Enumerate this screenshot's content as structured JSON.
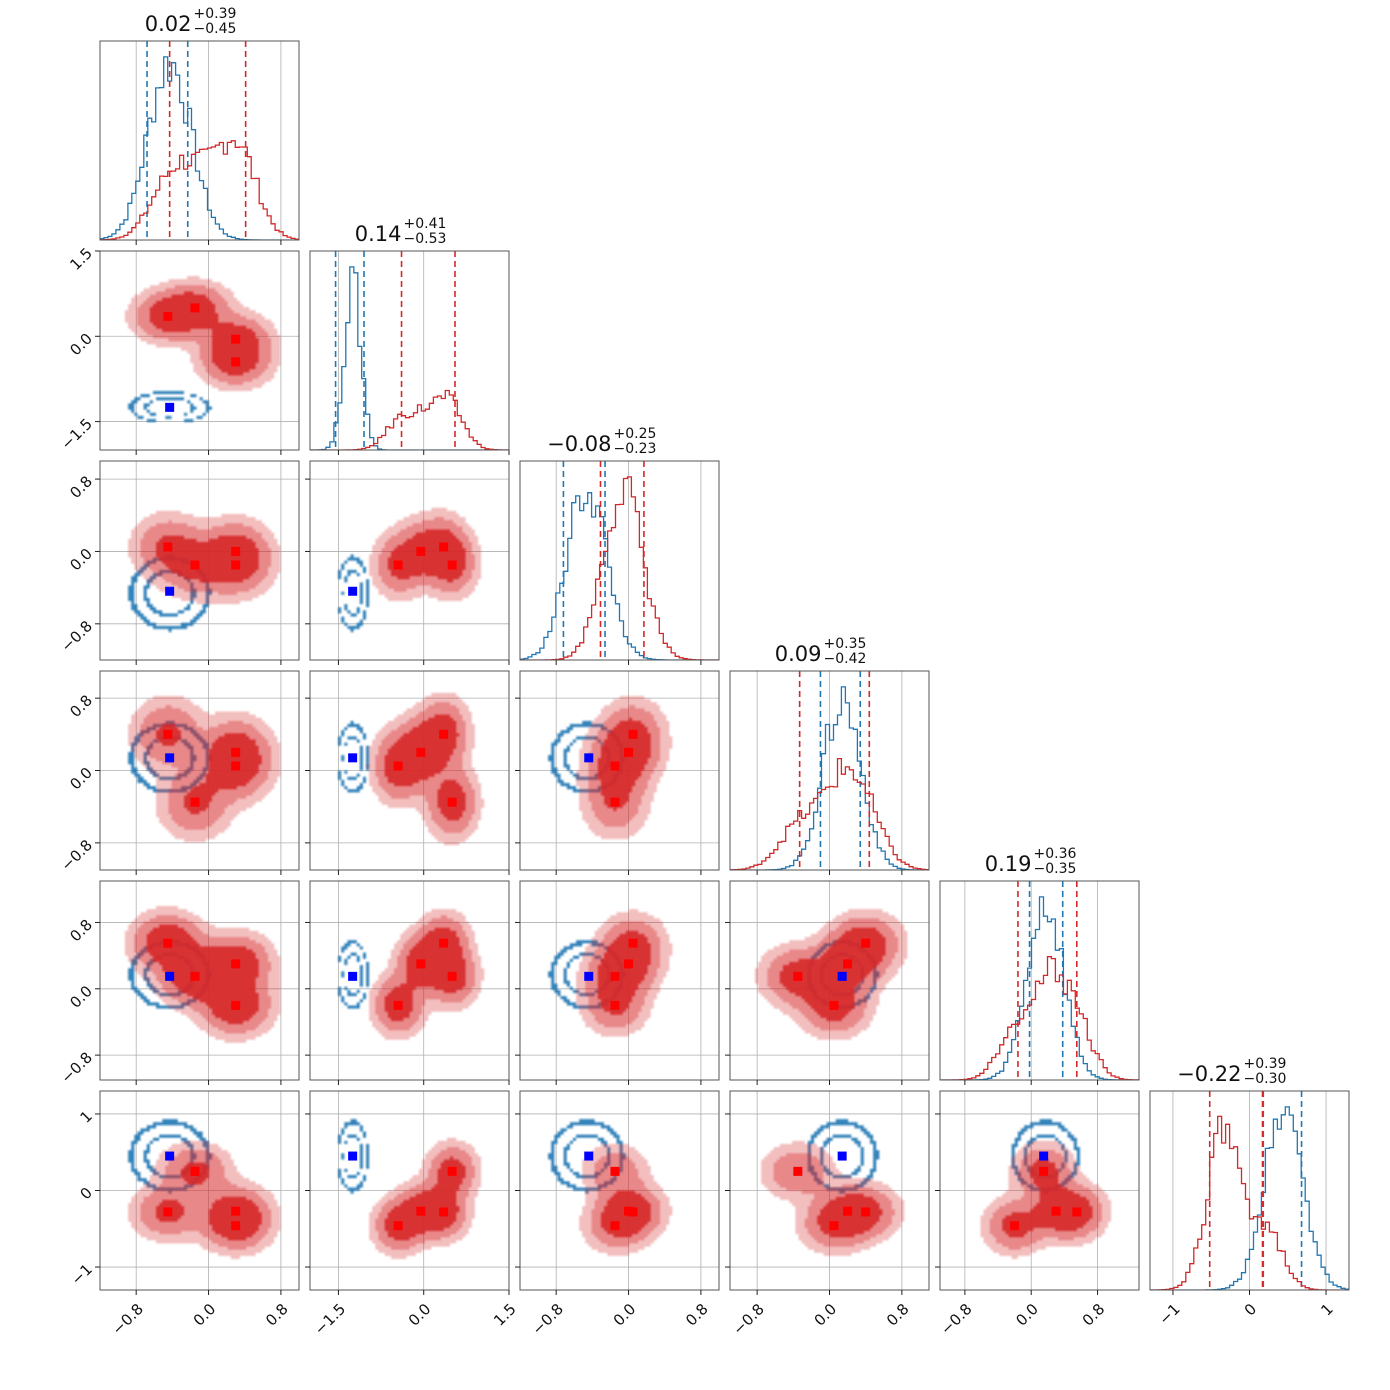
{
  "colors": {
    "series_a": "#1f77b4",
    "series_b": "#d62728",
    "series_b_fill": "#d62728",
    "marker_a": "#0000ff",
    "marker_b": "#ff0000",
    "grid": "#b0b0b0",
    "frame": "#555555"
  },
  "chart_data": {
    "type": "corner",
    "n_params": 6,
    "grid": true,
    "titles": [
      {
        "median": "0.02",
        "plus": "+0.39",
        "minus": "−0.45"
      },
      {
        "median": "0.14",
        "plus": "+0.41",
        "minus": "−0.53"
      },
      {
        "median": "−0.08",
        "plus": "+0.25",
        "minus": "−0.23"
      },
      {
        "median": "0.09",
        "plus": "+0.35",
        "minus": "−0.42"
      },
      {
        "median": "0.19",
        "plus": "+0.36",
        "minus": "−0.35"
      },
      {
        "median": "−0.22",
        "plus": "+0.39",
        "minus": "−0.30"
      }
    ],
    "ranges": [
      [
        -1.2,
        1.0
      ],
      [
        -2.0,
        1.5
      ],
      [
        -1.2,
        1.0
      ],
      [
        -1.1,
        1.1
      ],
      [
        -1.1,
        1.3
      ],
      [
        -1.3,
        1.3
      ]
    ],
    "x_ticks": [
      {
        "values": [
          -0.8,
          0.0,
          0.8
        ],
        "labels": [
          "−0.8",
          "0.0",
          "0.8"
        ]
      },
      {
        "values": [
          -1.5,
          0.0,
          1.5
        ],
        "labels": [
          "−1.5",
          "0.0",
          "1.5"
        ]
      },
      {
        "values": [
          -0.8,
          0.0,
          0.8
        ],
        "labels": [
          "−0.8",
          "0.0",
          "0.8"
        ]
      },
      {
        "values": [
          -0.8,
          0.0,
          0.8
        ],
        "labels": [
          "−0.8",
          "0.0",
          "0.8"
        ]
      },
      {
        "values": [
          -0.8,
          0.0,
          0.8
        ],
        "labels": [
          "−0.8",
          "0.0",
          "0.8"
        ]
      },
      {
        "values": [
          -1,
          0,
          1
        ],
        "labels": [
          "−1",
          "0",
          "1"
        ]
      }
    ],
    "y_ticks": [
      null,
      {
        "values": [
          -1.5,
          0.0,
          1.5
        ],
        "labels": [
          "−1.5",
          "0.0",
          "1.5"
        ]
      },
      {
        "values": [
          -0.8,
          0.0,
          0.8
        ],
        "labels": [
          "−0.8",
          "0.0",
          "0.8"
        ]
      },
      {
        "values": [
          -0.8,
          0.0,
          0.8
        ],
        "labels": [
          "−0.8",
          "0.0",
          "0.8"
        ]
      },
      {
        "values": [
          -0.8,
          0.0,
          0.8
        ],
        "labels": [
          "−0.8",
          "0.0",
          "0.8"
        ]
      },
      {
        "values": [
          -1,
          0,
          1
        ],
        "labels": [
          "−1",
          "0",
          "1"
        ]
      }
    ],
    "series": [
      {
        "color": "#1f77b4",
        "marker_color": "#0000ff",
        "quantiles": [
          [
            -0.68,
            -0.23
          ],
          [
            -1.55,
            -1.05
          ],
          [
            -0.72,
            -0.26
          ],
          [
            -0.1,
            0.34
          ],
          [
            -0.02,
            0.38
          ],
          [
            0.18,
            0.68
          ]
        ],
        "hist_peak": [
          -0.43,
          -1.25,
          -0.45,
          0.12,
          0.14,
          0.45
        ],
        "hist_sigma": [
          0.12,
          0.14,
          0.14,
          0.12,
          0.11,
          0.14
        ],
        "components": [
          {
            "w": 1.0,
            "mu": [
              -0.43,
              -1.25,
              -0.46,
              0.14,
              0.17,
              0.45
            ],
            "sd": [
              0.24,
              0.15,
              0.22,
              0.21,
              0.22,
              0.25
            ]
          }
        ],
        "markers": [
          [
            -0.43,
            -1.25,
            -0.44,
            0.14,
            0.15,
            0.45
          ]
        ]
      },
      {
        "color": "#d62728",
        "marker_color": "#ff0000",
        "quantiles": [
          [
            -0.43,
            0.41
          ],
          [
            -0.39,
            0.55
          ],
          [
            -0.31,
            0.17
          ],
          [
            -0.33,
            0.44
          ],
          [
            -0.16,
            0.55
          ],
          [
            -0.52,
            0.17
          ]
        ],
        "hist_peak": [
          0.3,
          0.4,
          -0.05,
          0.1,
          0.19,
          -0.35
        ],
        "hist_sigma": [
          0.3,
          0.45,
          0.14,
          0.25,
          0.22,
          0.2
        ],
        "components": [
          {
            "w": 0.25,
            "mu": [
              -0.45,
              0.35,
              0.05,
              0.4,
              0.55,
              -0.28
            ],
            "sd": [
              0.22,
              0.25,
              0.2,
              0.22,
              0.2,
              0.2
            ]
          },
          {
            "w": 0.25,
            "mu": [
              -0.15,
              0.5,
              -0.15,
              -0.35,
              0.15,
              0.25
            ],
            "sd": [
              0.22,
              0.25,
              0.2,
              0.22,
              0.2,
              0.2
            ]
          },
          {
            "w": 0.25,
            "mu": [
              0.3,
              -0.05,
              0.0,
              0.2,
              0.3,
              -0.27
            ],
            "sd": [
              0.22,
              0.25,
              0.2,
              0.22,
              0.2,
              0.2
            ]
          },
          {
            "w": 0.25,
            "mu": [
              0.3,
              -0.45,
              -0.15,
              0.05,
              -0.2,
              -0.46
            ],
            "sd": [
              0.22,
              0.25,
              0.2,
              0.22,
              0.2,
              0.2
            ]
          }
        ],
        "markers": [
          [
            -0.45,
            0.35,
            0.05,
            0.4,
            0.55,
            -0.28
          ],
          [
            -0.15,
            0.5,
            -0.15,
            -0.35,
            0.15,
            0.25
          ],
          [
            0.3,
            -0.05,
            0.0,
            0.2,
            0.3,
            -0.27
          ],
          [
            0.3,
            -0.45,
            -0.15,
            0.05,
            -0.2,
            -0.46
          ]
        ]
      }
    ]
  }
}
